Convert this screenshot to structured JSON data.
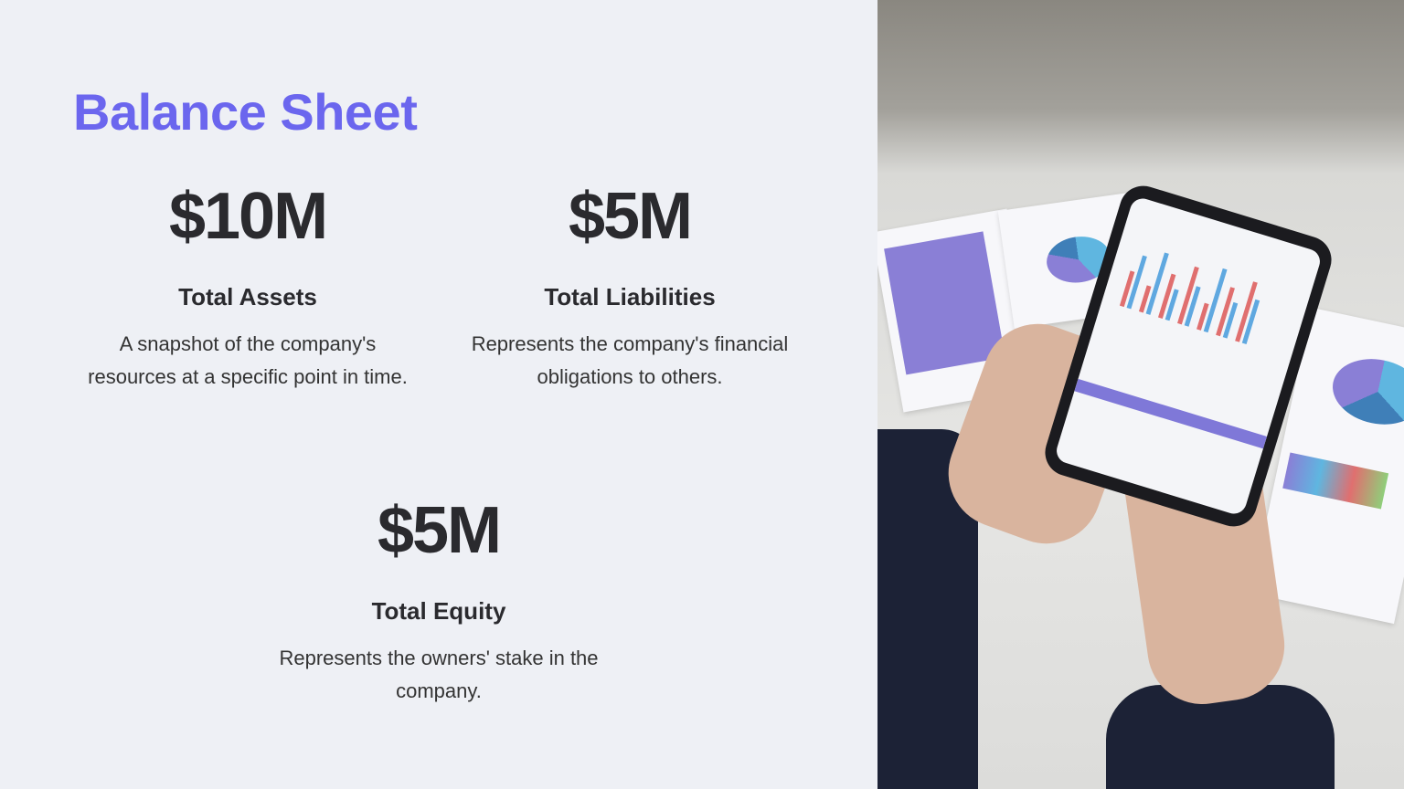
{
  "title": "Balance Sheet",
  "stats": [
    {
      "value": "$10M",
      "label": "Total Assets",
      "description": "A snapshot of the company's resources at a specific point in time."
    },
    {
      "value": "$5M",
      "label": "Total Liabilities",
      "description": "Represents the company's financial obligations to others."
    },
    {
      "value": "$5M",
      "label": "Total Equity",
      "description": "Represents the owners' stake in the company."
    }
  ],
  "colors": {
    "accent": "#6b66ee",
    "background": "#eef0f5",
    "text": "#2a2a2e"
  },
  "image": {
    "subject": "photo-hands-holding-phone-with-financial-charts"
  }
}
